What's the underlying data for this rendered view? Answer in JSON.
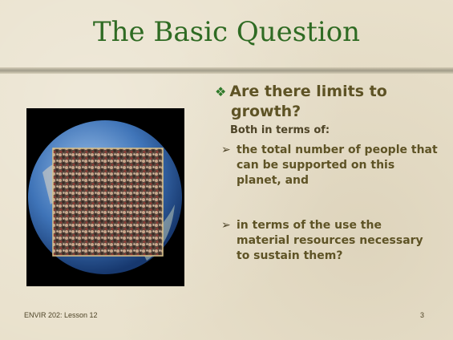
{
  "title": "The Basic Question",
  "bullet": "Are there limits to growth?",
  "intro": "Both in terms of:",
  "subbullets": [
    "the total number of people that can be supported on this planet, and",
    "in terms of the use the material resources necessary to sustain them?"
  ],
  "footer": "ENVIR 202: Lesson 12",
  "page_number": "3"
}
